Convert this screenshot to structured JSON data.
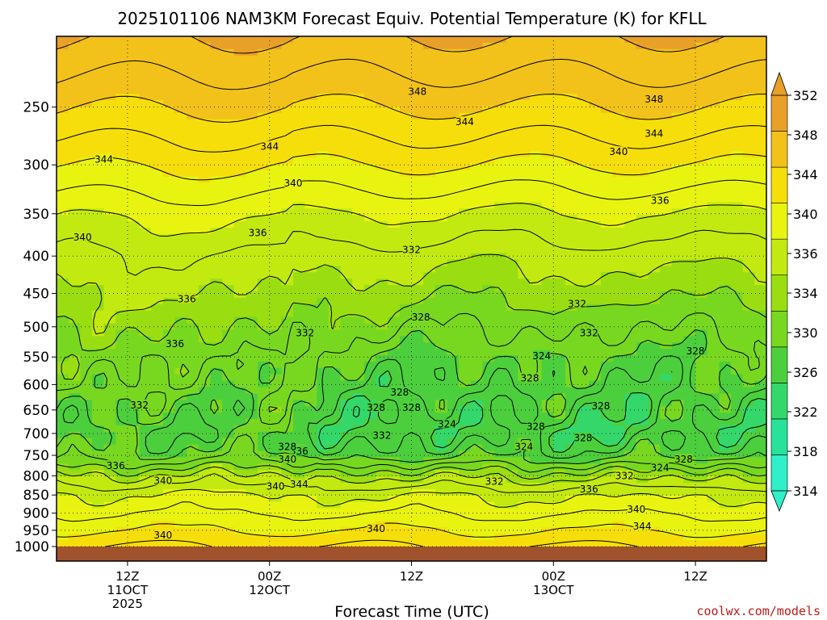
{
  "chart_data": {
    "type": "heatmap",
    "title": "2025101106 NAM3KM Forecast Equiv. Potential Temperature (K) for KFLL",
    "xlabel": "Forecast Time (UTC)",
    "ylabel": "",
    "watermark": "coolwx.com/models",
    "x_range_hours": [
      0,
      60
    ],
    "x_ticks": [
      {
        "hour": 6,
        "lines": [
          "12Z",
          "11OCT",
          "2025"
        ]
      },
      {
        "hour": 18,
        "lines": [
          "00Z",
          "12OCT"
        ]
      },
      {
        "hour": 30,
        "lines": [
          "12Z"
        ]
      },
      {
        "hour": 42,
        "lines": [
          "00Z",
          "13OCT"
        ]
      },
      {
        "hour": 54,
        "lines": [
          "12Z"
        ]
      }
    ],
    "y_ticks": [
      250,
      300,
      350,
      400,
      450,
      500,
      550,
      600,
      650,
      700,
      750,
      800,
      850,
      900,
      950,
      1000
    ],
    "y_range_hpa": [
      200,
      1000
    ],
    "colorbar": {
      "levels": [
        314,
        318,
        322,
        326,
        330,
        334,
        336,
        340,
        344,
        348,
        352
      ],
      "label_levels": [
        "314",
        "318",
        "322",
        "326",
        "330",
        "334",
        "336",
        "340",
        "344",
        "348",
        "352"
      ],
      "colors": [
        "#2ff0c8",
        "#28e29a",
        "#34d86a",
        "#4ccf3c",
        "#78d820",
        "#9ade12",
        "#c2ea10",
        "#e8f410",
        "#f6de0a",
        "#f2c21a",
        "#e8a028"
      ]
    },
    "ground_color": "#a0522d",
    "profile_pressure": [
      200,
      250,
      300,
      350,
      400,
      450,
      500,
      550,
      600,
      650,
      700,
      750,
      800,
      850,
      900,
      950,
      1000
    ],
    "profile_theta_e": [
      352,
      348,
      344,
      340,
      337,
      335,
      333,
      331,
      330,
      329,
      328,
      330,
      336,
      340,
      342,
      344,
      346
    ],
    "contour_labels": [
      {
        "value": "348",
        "hour": 30.5,
        "p": 238
      },
      {
        "value": "348",
        "hour": 50.5,
        "p": 244
      },
      {
        "value": "344",
        "hour": 34.5,
        "p": 262
      },
      {
        "value": "344",
        "hour": 50.5,
        "p": 272
      },
      {
        "value": "344",
        "hour": 18,
        "p": 283
      },
      {
        "value": "344",
        "hour": 4,
        "p": 295
      },
      {
        "value": "340",
        "hour": 47.5,
        "p": 288
      },
      {
        "value": "340",
        "hour": 20,
        "p": 318
      },
      {
        "value": "340",
        "hour": 2.2,
        "p": 377
      },
      {
        "value": "336",
        "hour": 51,
        "p": 336
      },
      {
        "value": "336",
        "hour": 17,
        "p": 372
      },
      {
        "value": "336",
        "hour": 11,
        "p": 458
      },
      {
        "value": "336",
        "hour": 10,
        "p": 528
      },
      {
        "value": "336",
        "hour": 5,
        "p": 775
      },
      {
        "value": "336",
        "hour": 20.5,
        "p": 740
      },
      {
        "value": "336",
        "hour": 45,
        "p": 835
      },
      {
        "value": "332",
        "hour": 30,
        "p": 392
      },
      {
        "value": "332",
        "hour": 44,
        "p": 465
      },
      {
        "value": "332",
        "hour": 45,
        "p": 510
      },
      {
        "value": "332",
        "hour": 21,
        "p": 510
      },
      {
        "value": "332",
        "hour": 7,
        "p": 640
      },
      {
        "value": "332",
        "hour": 27.5,
        "p": 705
      },
      {
        "value": "332",
        "hour": 37,
        "p": 815
      },
      {
        "value": "332",
        "hour": 48,
        "p": 800
      },
      {
        "value": "328",
        "hour": 30.8,
        "p": 485
      },
      {
        "value": "328",
        "hour": 54,
        "p": 540
      },
      {
        "value": "328",
        "hour": 40,
        "p": 588
      },
      {
        "value": "328",
        "hour": 29,
        "p": 615
      },
      {
        "value": "328",
        "hour": 27,
        "p": 645
      },
      {
        "value": "328",
        "hour": 30,
        "p": 645
      },
      {
        "value": "328",
        "hour": 46,
        "p": 642
      },
      {
        "value": "328",
        "hour": 40.5,
        "p": 685
      },
      {
        "value": "328",
        "hour": 44.5,
        "p": 710
      },
      {
        "value": "328",
        "hour": 19.5,
        "p": 730
      },
      {
        "value": "328",
        "hour": 53,
        "p": 760
      },
      {
        "value": "324",
        "hour": 41,
        "p": 548
      },
      {
        "value": "324",
        "hour": 33,
        "p": 680
      },
      {
        "value": "324",
        "hour": 39.5,
        "p": 730
      },
      {
        "value": "324",
        "hour": 51,
        "p": 780
      },
      {
        "value": "340",
        "hour": 19.5,
        "p": 760
      },
      {
        "value": "340",
        "hour": 18.5,
        "p": 827
      },
      {
        "value": "344",
        "hour": 20.5,
        "p": 822
      },
      {
        "value": "340",
        "hour": 9,
        "p": 813
      },
      {
        "value": "340",
        "hour": 49,
        "p": 890
      },
      {
        "value": "344",
        "hour": 49.5,
        "p": 938
      },
      {
        "value": "340",
        "hour": 27,
        "p": 945
      },
      {
        "value": "340",
        "hour": 9,
        "p": 965
      }
    ]
  }
}
